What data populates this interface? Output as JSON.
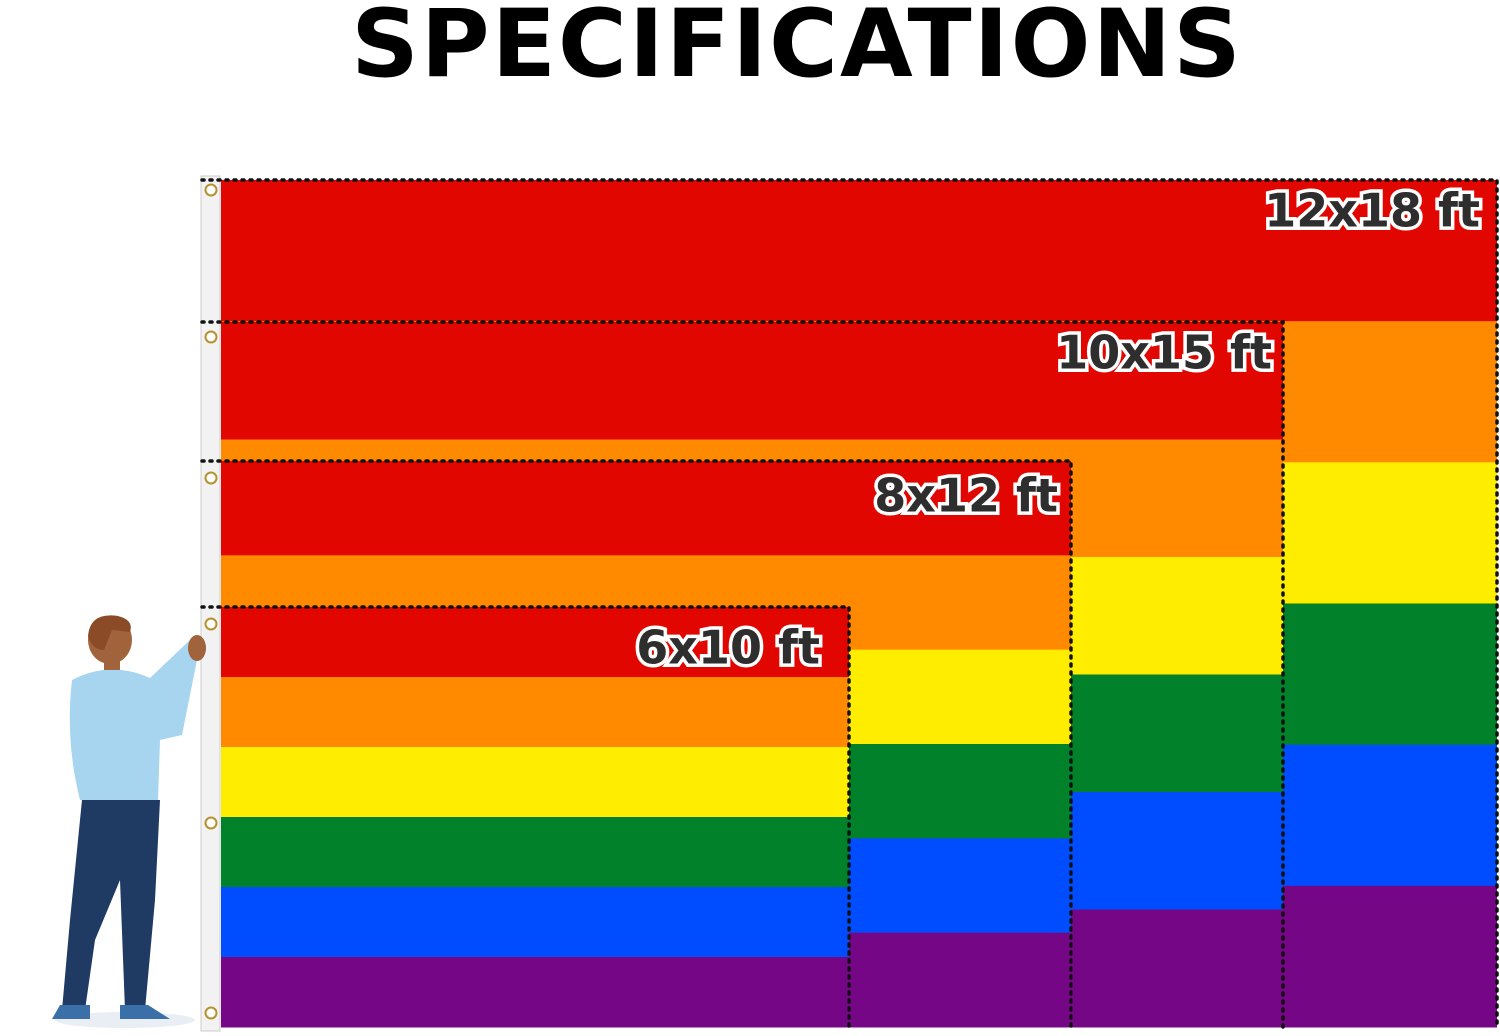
{
  "title": "SPECIFICATIONS",
  "sizes": [
    "12x18 ft",
    "10x15 ft",
    "8x12 ft",
    "6x10 ft"
  ]
}
